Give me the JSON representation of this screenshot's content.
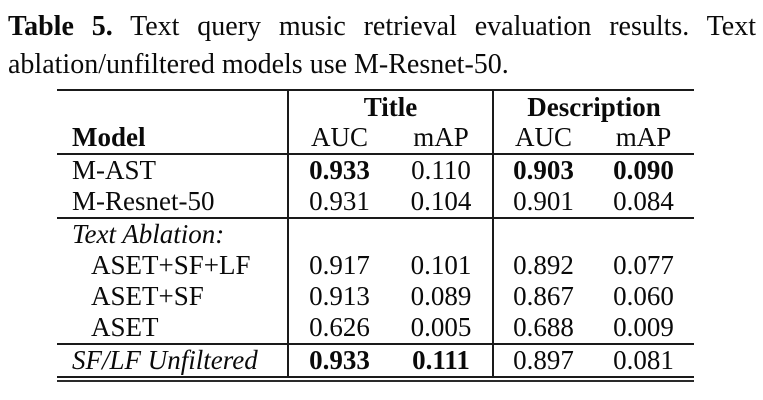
{
  "caption": {
    "label": "Table 5.",
    "text": " Text query music retrieval evaluation results. Text ablation/unfiltered models use M-Resnet-50."
  },
  "table": {
    "header": {
      "model": "Model",
      "group1": "Title",
      "group2": "Description",
      "subcols": [
        "AUC",
        "mAP",
        "AUC",
        "mAP"
      ]
    },
    "rows": [
      {
        "label": "M-AST",
        "italic": false,
        "indent": false,
        "section_start": false,
        "values": [
          "0.933",
          "0.110",
          "0.903",
          "0.090"
        ],
        "bold": [
          true,
          false,
          true,
          true
        ]
      },
      {
        "label": "M-Resnet-50",
        "italic": false,
        "indent": false,
        "section_start": false,
        "values": [
          "0.931",
          "0.104",
          "0.901",
          "0.084"
        ],
        "bold": [
          false,
          false,
          false,
          false
        ]
      },
      {
        "label": "Text Ablation:",
        "italic": true,
        "indent": false,
        "section_start": true,
        "values": [
          "",
          "",
          "",
          ""
        ],
        "bold": [
          false,
          false,
          false,
          false
        ]
      },
      {
        "label": "ASET+SF+LF",
        "italic": false,
        "indent": true,
        "section_start": false,
        "values": [
          "0.917",
          "0.101",
          "0.892",
          "0.077"
        ],
        "bold": [
          false,
          false,
          false,
          false
        ]
      },
      {
        "label": "ASET+SF",
        "italic": false,
        "indent": true,
        "section_start": false,
        "values": [
          "0.913",
          "0.089",
          "0.867",
          "0.060"
        ],
        "bold": [
          false,
          false,
          false,
          false
        ]
      },
      {
        "label": "ASET",
        "italic": false,
        "indent": true,
        "section_start": false,
        "values": [
          "0.626",
          "0.005",
          "0.688",
          "0.009"
        ],
        "bold": [
          false,
          false,
          false,
          false
        ]
      },
      {
        "label": "SF/LF Unfiltered",
        "italic": true,
        "indent": false,
        "section_start": true,
        "values": [
          "0.933",
          "0.111",
          "0.897",
          "0.081"
        ],
        "bold": [
          true,
          true,
          false,
          false
        ]
      }
    ]
  },
  "colors": {
    "rule": "#1a1a1a",
    "text": "#0a0a0a",
    "background": "#ffffff"
  }
}
